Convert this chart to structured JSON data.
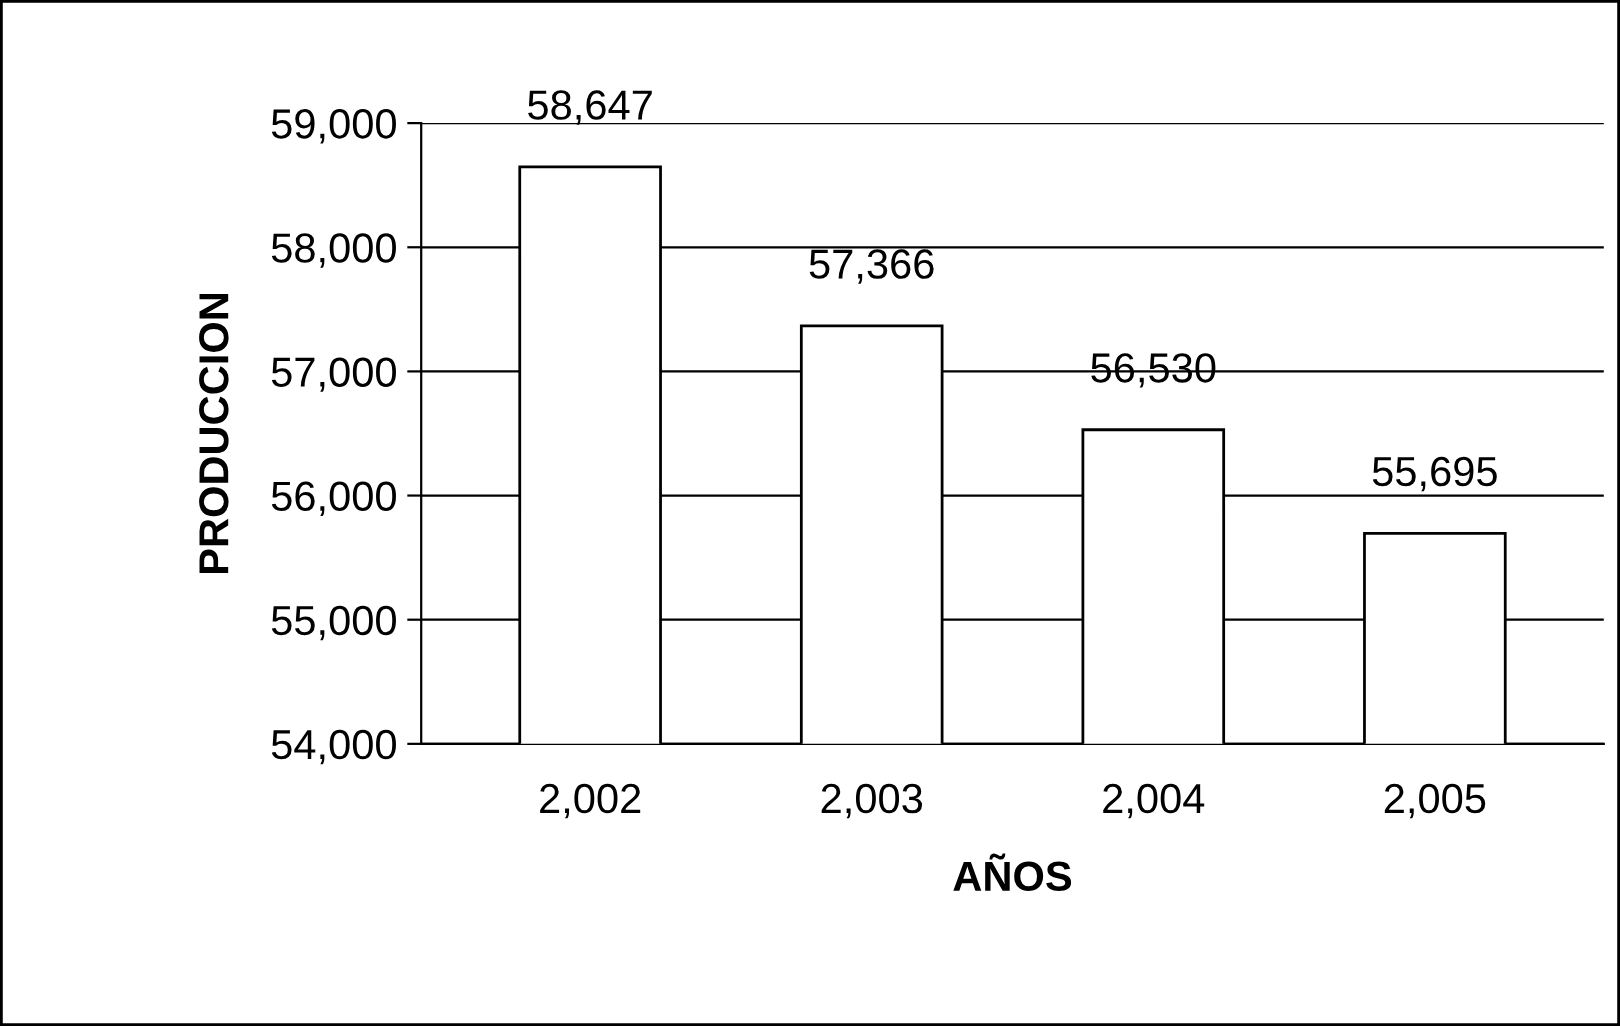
{
  "chart_data": {
    "type": "bar",
    "categories": [
      "2,002",
      "2,003",
      "2,004",
      "2,005"
    ],
    "values": [
      58647,
      57366,
      56530,
      55695
    ],
    "color": "#ffffff",
    "value_labels": [
      "58,647",
      "57,366",
      "56,530",
      "55,695"
    ],
    "xlabel": "AÑOS",
    "ylabel": "PRODUCCION",
    "ylim": [
      54000,
      59000
    ],
    "yticks": [
      {
        "value": 54000,
        "label": "54,000"
      },
      {
        "value": 55000,
        "label": "55,000"
      },
      {
        "value": 56000,
        "label": "56,000"
      },
      {
        "value": 57000,
        "label": "57,000"
      },
      {
        "value": 58000,
        "label": "58,000"
      },
      {
        "value": 59000,
        "label": "59,000"
      }
    ],
    "grid": "y",
    "legend": false
  }
}
